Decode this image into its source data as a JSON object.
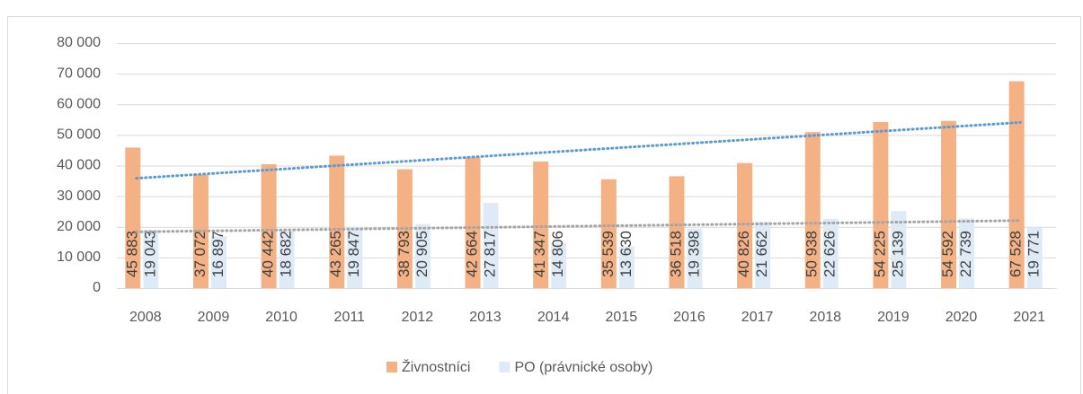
{
  "chart_data": {
    "type": "bar",
    "categories": [
      "2008",
      "2009",
      "2010",
      "2011",
      "2012",
      "2013",
      "2014",
      "2015",
      "2016",
      "2017",
      "2018",
      "2019",
      "2020",
      "2021"
    ],
    "series": [
      {
        "name": "Živnostníci",
        "color": "#f4b183",
        "trend_color": "#5b9bd5",
        "trendline": true,
        "values": [
          45883,
          37072,
          40442,
          43265,
          38793,
          42664,
          41347,
          35539,
          36518,
          40826,
          50938,
          54225,
          54592,
          67528
        ],
        "value_labels": [
          "45 883",
          "37 072",
          "40 442",
          "43 265",
          "38 793",
          "42 664",
          "41 347",
          "35 539",
          "36 518",
          "40 826",
          "50 938",
          "54 225",
          "54 592",
          "67 528"
        ]
      },
      {
        "name": "PO (právnické osoby)",
        "color": "#deebf7",
        "trend_color": "#a5a5a5",
        "trendline": true,
        "values": [
          19043,
          16897,
          18682,
          19847,
          20905,
          27817,
          14806,
          13630,
          19398,
          21662,
          22626,
          25139,
          22739,
          19771
        ],
        "value_labels": [
          "19 043",
          "16 897",
          "18 682",
          "19 847",
          "20 905",
          "27 817",
          "14 806",
          "13 630",
          "19 398",
          "21 662",
          "22 626",
          "25 139",
          "22 739",
          "19 771"
        ]
      }
    ],
    "ylim": [
      0,
      80000
    ],
    "yticks": [
      0,
      {
        "value": 10000,
        "label": "10 000"
      },
      {
        "value": 20000,
        "label": "20 000"
      },
      {
        "value": 30000,
        "label": "30 000"
      },
      {
        "value": 40000,
        "label": "40 000"
      },
      {
        "value": 50000,
        "label": "50 000"
      },
      {
        "value": 60000,
        "label": "60 000"
      },
      {
        "value": 70000,
        "label": "70 000"
      },
      {
        "value": 80000,
        "label": "80 000"
      }
    ],
    "grid": true,
    "legend": "bottom"
  }
}
